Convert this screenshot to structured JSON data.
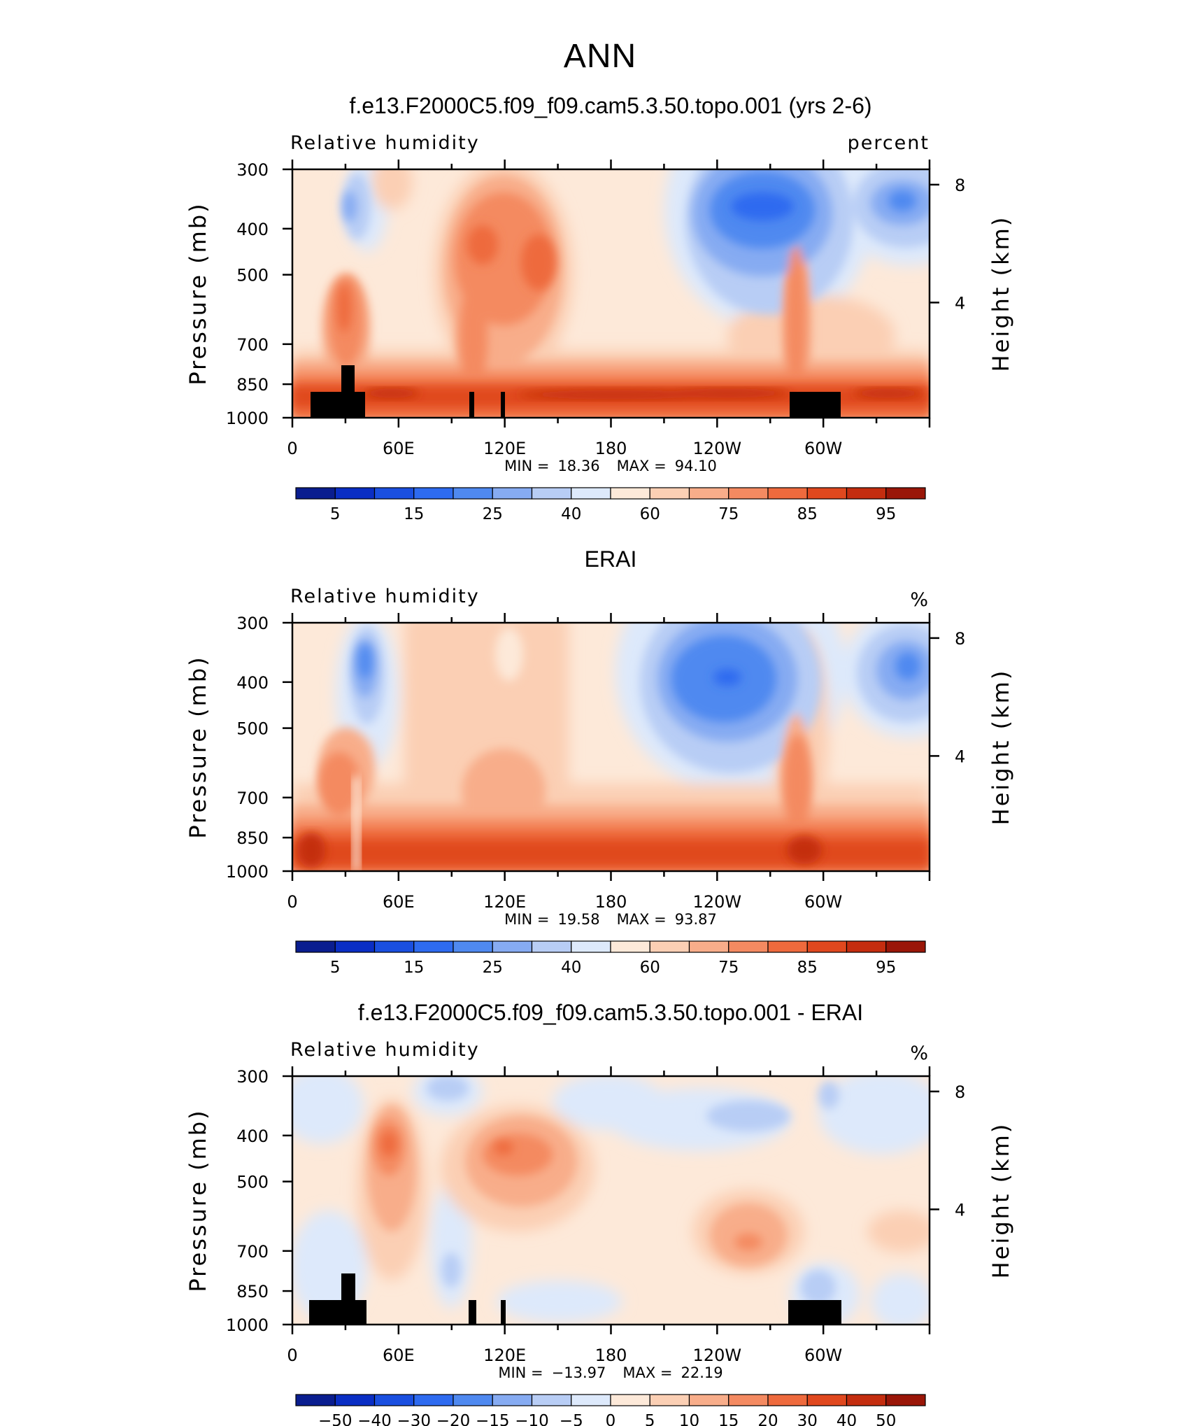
{
  "figure": {
    "title": "ANN"
  },
  "chart_data": [
    {
      "type": "heatmap",
      "title": "f.e13.F2000C5.f09_f09.cam5.3.50.topo.001 (yrs 2-6)",
      "left_label": "Relative humidity",
      "right_label": "percent",
      "ylabel": "Pressure (mb)",
      "ylabel_right": "Height (km)",
      "x_ticks": [
        "0",
        "60E",
        "120E",
        "180",
        "120W",
        "60W"
      ],
      "y_ticks": [
        "300",
        "400",
        "500",
        "700",
        "850",
        "1000"
      ],
      "y_ticks_right": [
        "8",
        "4"
      ],
      "stats": {
        "min_label": "MIN =",
        "min": "18.36",
        "max_label": "MAX =",
        "max": "94.10"
      },
      "colorbar": {
        "labels": [
          "5",
          "15",
          "25",
          "40",
          "60",
          "75",
          "85",
          "95"
        ],
        "colors": [
          "#0a1d8f",
          "#0a2ec4",
          "#1a4fe0",
          "#2e6bf0",
          "#4f89f0",
          "#86abf2",
          "#b8cdf5",
          "#dde9fb",
          "#fde9d9",
          "#fbcfb4",
          "#f8ad8a",
          "#f48a61",
          "#ee6a3d",
          "#e0481e",
          "#c42d0f",
          "#9a1608"
        ]
      },
      "xrange": [
        0,
        360
      ],
      "ylim": [
        1000,
        300
      ],
      "topography": true
    },
    {
      "type": "heatmap",
      "title": "ERAI",
      "left_label": "Relative humidity",
      "right_label": "%",
      "ylabel": "Pressure (mb)",
      "ylabel_right": "Height (km)",
      "x_ticks": [
        "0",
        "60E",
        "120E",
        "180",
        "120W",
        "60W"
      ],
      "y_ticks": [
        "300",
        "400",
        "500",
        "700",
        "850",
        "1000"
      ],
      "y_ticks_right": [
        "8",
        "4"
      ],
      "stats": {
        "min_label": "MIN =",
        "min": "19.58",
        "max_label": "MAX =",
        "max": "93.87"
      },
      "colorbar": {
        "labels": [
          "5",
          "15",
          "25",
          "40",
          "60",
          "75",
          "85",
          "95"
        ],
        "colors": [
          "#0a1d8f",
          "#0a2ec4",
          "#1a4fe0",
          "#2e6bf0",
          "#4f89f0",
          "#86abf2",
          "#b8cdf5",
          "#dde9fb",
          "#fde9d9",
          "#fbcfb4",
          "#f8ad8a",
          "#f48a61",
          "#ee6a3d",
          "#e0481e",
          "#c42d0f",
          "#9a1608"
        ]
      },
      "xrange": [
        0,
        360
      ],
      "ylim": [
        1000,
        300
      ],
      "topography": false
    },
    {
      "type": "heatmap",
      "title": "f.e13.F2000C5.f09_f09.cam5.3.50.topo.001 - ERAI",
      "left_label": "Relative humidity",
      "right_label": "%",
      "ylabel": "Pressure (mb)",
      "ylabel_right": "Height (km)",
      "x_ticks": [
        "0",
        "60E",
        "120E",
        "180",
        "120W",
        "60W"
      ],
      "y_ticks": [
        "300",
        "400",
        "500",
        "700",
        "850",
        "1000"
      ],
      "y_ticks_right": [
        "8",
        "4"
      ],
      "stats": {
        "min_label": "MIN =",
        "min": "−13.97",
        "max_label": "MAX =",
        "max": "22.19"
      },
      "colorbar": {
        "labels": [
          "−50",
          "−40",
          "−30",
          "−20",
          "−15",
          "−10",
          "−5",
          "0",
          "5",
          "10",
          "15",
          "20",
          "30",
          "40",
          "50"
        ],
        "colors": [
          "#0a1d8f",
          "#0a2ec4",
          "#1a4fe0",
          "#2e6bf0",
          "#4f89f0",
          "#86abf2",
          "#b8cdf5",
          "#dde9fb",
          "#fde9d9",
          "#fbcfb4",
          "#f8ad8a",
          "#f48a61",
          "#ee6a3d",
          "#e0481e",
          "#c42d0f",
          "#9a1608"
        ]
      },
      "xrange": [
        0,
        360
      ],
      "ylim": [
        1000,
        300
      ],
      "topography": true
    }
  ]
}
